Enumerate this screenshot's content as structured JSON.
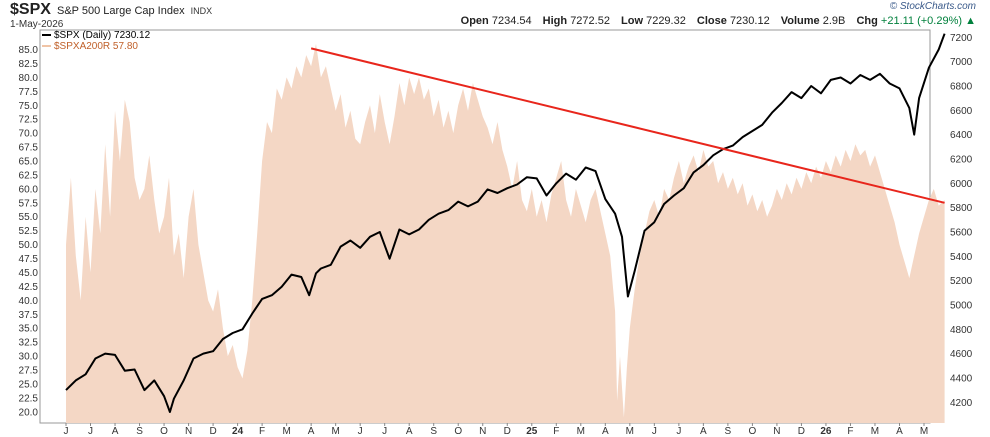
{
  "header": {
    "symbol": "$SPX",
    "name": "S&P 500 Large Cap Index",
    "exchange": "INDX",
    "date": "1-May-2026",
    "brand": "© StockCharts.com",
    "ohlc": {
      "open_label": "Open",
      "open": "7234.54",
      "high_label": "High",
      "high": "7272.52",
      "low_label": "Low",
      "low": "7229.32",
      "close_label": "Close",
      "close": "7230.12",
      "volume_label": "Volume",
      "volume": "2.9B",
      "chg_label": "Chg",
      "chg": "+21.11 (+0.29%)",
      "chg_arrow": "▲"
    }
  },
  "legend": {
    "spx": "$SPX (Daily) 7230.12",
    "breadth": "$SPXA200R 57.80"
  },
  "colors": {
    "price_line": "#000000",
    "breadth_area": "#f4d7c5",
    "trendline": "#e8261c",
    "up": "#00803c"
  },
  "chart_data": {
    "type": "line",
    "x_ticks": [
      "J",
      "J",
      "A",
      "S",
      "O",
      "N",
      "D",
      "24",
      "F",
      "M",
      "A",
      "M",
      "J",
      "J",
      "A",
      "S",
      "O",
      "N",
      "D",
      "25",
      "F",
      "M",
      "A",
      "M",
      "J",
      "J",
      "A",
      "S",
      "O",
      "N",
      "D",
      "26",
      "F",
      "M",
      "A",
      "M"
    ],
    "y_left_ticks": [
      "85.0",
      "82.5",
      "80.0",
      "77.5",
      "75.0",
      "72.5",
      "70.0",
      "67.5",
      "65.0",
      "62.5",
      "60.0",
      "57.5",
      "55.0",
      "52.5",
      "50.0",
      "47.5",
      "45.0",
      "42.5",
      "40.0",
      "37.5",
      "35.0",
      "32.5",
      "30.0",
      "27.5",
      "25.0",
      "22.5",
      "20.0"
    ],
    "y_right_ticks": [
      "7200",
      "7000",
      "6800",
      "6600",
      "6400",
      "6200",
      "6000",
      "5800",
      "5600",
      "5400",
      "5200",
      "5000",
      "4800",
      "4600",
      "4400",
      "4200"
    ],
    "y_left_range": [
      18,
      88.5
    ],
    "y_right_range": [
      4030,
      7260
    ],
    "grid": false,
    "series": [
      {
        "name": "$SPX (Daily)",
        "kind": "line",
        "axis": "right",
        "points": [
          [
            0,
            4300
          ],
          [
            1,
            4380
          ],
          [
            2,
            4430
          ],
          [
            3,
            4560
          ],
          [
            4,
            4600
          ],
          [
            5,
            4590
          ],
          [
            6,
            4460
          ],
          [
            7,
            4470
          ],
          [
            8,
            4300
          ],
          [
            9,
            4380
          ],
          [
            10,
            4250
          ],
          [
            10.6,
            4120
          ],
          [
            11,
            4230
          ],
          [
            12,
            4380
          ],
          [
            13,
            4560
          ],
          [
            14,
            4600
          ],
          [
            15,
            4620
          ],
          [
            16,
            4720
          ],
          [
            17,
            4770
          ],
          [
            18,
            4800
          ],
          [
            19,
            4930
          ],
          [
            20,
            5050
          ],
          [
            21,
            5080
          ],
          [
            22,
            5150
          ],
          [
            23,
            5250
          ],
          [
            24,
            5230
          ],
          [
            24.8,
            5080
          ],
          [
            25.5,
            5260
          ],
          [
            26,
            5300
          ],
          [
            27,
            5330
          ],
          [
            28,
            5480
          ],
          [
            29,
            5530
          ],
          [
            30,
            5470
          ],
          [
            31,
            5560
          ],
          [
            32,
            5600
          ],
          [
            33,
            5380
          ],
          [
            34,
            5620
          ],
          [
            35,
            5580
          ],
          [
            36,
            5620
          ],
          [
            37,
            5700
          ],
          [
            38,
            5750
          ],
          [
            39,
            5780
          ],
          [
            40,
            5850
          ],
          [
            41,
            5810
          ],
          [
            42,
            5850
          ],
          [
            43,
            5950
          ],
          [
            44,
            5920
          ],
          [
            45,
            5960
          ],
          [
            46,
            5990
          ],
          [
            47,
            6050
          ],
          [
            48,
            6040
          ],
          [
            49,
            5900
          ],
          [
            50,
            6000
          ],
          [
            51,
            6080
          ],
          [
            52,
            6030
          ],
          [
            53,
            6130
          ],
          [
            54,
            6100
          ],
          [
            55,
            5870
          ],
          [
            56,
            5750
          ],
          [
            56.7,
            5560
          ],
          [
            57.3,
            5070
          ],
          [
            58,
            5280
          ],
          [
            59,
            5610
          ],
          [
            60,
            5680
          ],
          [
            61,
            5830
          ],
          [
            62,
            5900
          ],
          [
            63,
            5960
          ],
          [
            64,
            6090
          ],
          [
            65,
            6150
          ],
          [
            66,
            6230
          ],
          [
            67,
            6280
          ],
          [
            68,
            6310
          ],
          [
            69,
            6380
          ],
          [
            70,
            6430
          ],
          [
            71,
            6480
          ],
          [
            72,
            6580
          ],
          [
            73,
            6660
          ],
          [
            74,
            6750
          ],
          [
            75,
            6700
          ],
          [
            76,
            6800
          ],
          [
            77,
            6740
          ],
          [
            78,
            6850
          ],
          [
            79,
            6870
          ],
          [
            80,
            6820
          ],
          [
            81,
            6890
          ],
          [
            82,
            6850
          ],
          [
            83,
            6900
          ],
          [
            84,
            6820
          ],
          [
            85,
            6780
          ],
          [
            86,
            6620
          ],
          [
            86.5,
            6400
          ],
          [
            87,
            6700
          ],
          [
            88,
            6950
          ],
          [
            89,
            7100
          ],
          [
            89.6,
            7230
          ]
        ]
      },
      {
        "name": "$SPXA200R",
        "kind": "area",
        "axis": "left",
        "points": [
          [
            0,
            50
          ],
          [
            0.5,
            62
          ],
          [
            1,
            48
          ],
          [
            1.5,
            40
          ],
          [
            2,
            55
          ],
          [
            2.5,
            45
          ],
          [
            3,
            60
          ],
          [
            3.5,
            52
          ],
          [
            4,
            68
          ],
          [
            4.5,
            55
          ],
          [
            5,
            74
          ],
          [
            5.5,
            65
          ],
          [
            6,
            76
          ],
          [
            6.5,
            72
          ],
          [
            7,
            62
          ],
          [
            7.5,
            58
          ],
          [
            8,
            60
          ],
          [
            8.5,
            66
          ],
          [
            9,
            58
          ],
          [
            9.5,
            52
          ],
          [
            10,
            55
          ],
          [
            10.5,
            62
          ],
          [
            11,
            48
          ],
          [
            11.5,
            52
          ],
          [
            12,
            44
          ],
          [
            12.5,
            55
          ],
          [
            13,
            60
          ],
          [
            13.5,
            50
          ],
          [
            14,
            45
          ],
          [
            14.5,
            40
          ],
          [
            15,
            38
          ],
          [
            15.5,
            42
          ],
          [
            16,
            35
          ],
          [
            16.5,
            30
          ],
          [
            17,
            32
          ],
          [
            17.5,
            28
          ],
          [
            18,
            26
          ],
          [
            18.5,
            31
          ],
          [
            19,
            40
          ],
          [
            19.5,
            52
          ],
          [
            20,
            65
          ],
          [
            20.5,
            72
          ],
          [
            21,
            70
          ],
          [
            21.5,
            78
          ],
          [
            22,
            76
          ],
          [
            22.5,
            80
          ],
          [
            23,
            78
          ],
          [
            23.5,
            82
          ],
          [
            24,
            80
          ],
          [
            24.5,
            84
          ],
          [
            25,
            82
          ],
          [
            25.5,
            86
          ],
          [
            26,
            80
          ],
          [
            26.5,
            82
          ],
          [
            27,
            78
          ],
          [
            27.5,
            74
          ],
          [
            28,
            77
          ],
          [
            28.5,
            71
          ],
          [
            29,
            74
          ],
          [
            29.5,
            69
          ],
          [
            30,
            68
          ],
          [
            30.5,
            72
          ],
          [
            31,
            75
          ],
          [
            31.5,
            70
          ],
          [
            32,
            77
          ],
          [
            32.5,
            72
          ],
          [
            33,
            68
          ],
          [
            33.5,
            73
          ],
          [
            34,
            79
          ],
          [
            34.5,
            75
          ],
          [
            35,
            80
          ],
          [
            35.5,
            77
          ],
          [
            36,
            80
          ],
          [
            36.5,
            76
          ],
          [
            37,
            78
          ],
          [
            37.5,
            73
          ],
          [
            38,
            76
          ],
          [
            38.5,
            71
          ],
          [
            39,
            74
          ],
          [
            39.5,
            70
          ],
          [
            40,
            75
          ],
          [
            40.5,
            78
          ],
          [
            41,
            74
          ],
          [
            41.5,
            79
          ],
          [
            42,
            76
          ],
          [
            42.5,
            73
          ],
          [
            43,
            71
          ],
          [
            43.5,
            68
          ],
          [
            44,
            72
          ],
          [
            44.5,
            67
          ],
          [
            45,
            64
          ],
          [
            45.5,
            60
          ],
          [
            46,
            65
          ],
          [
            46.5,
            58
          ],
          [
            47,
            56
          ],
          [
            47.5,
            60
          ],
          [
            48,
            55
          ],
          [
            48.5,
            58
          ],
          [
            49,
            54
          ],
          [
            49.5,
            59
          ],
          [
            50,
            62
          ],
          [
            50.5,
            65
          ],
          [
            51,
            58
          ],
          [
            51.5,
            55
          ],
          [
            52,
            60
          ],
          [
            52.5,
            57
          ],
          [
            53,
            54
          ],
          [
            53.5,
            58
          ],
          [
            54,
            60
          ],
          [
            54.5,
            56
          ],
          [
            55,
            52
          ],
          [
            55.5,
            48
          ],
          [
            56,
            38
          ],
          [
            56.2,
            22
          ],
          [
            56.5,
            30
          ],
          [
            56.9,
            19
          ],
          [
            57.2,
            28
          ],
          [
            57.5,
            35
          ],
          [
            58,
            42
          ],
          [
            58.5,
            48
          ],
          [
            59,
            52
          ],
          [
            59.5,
            56
          ],
          [
            60,
            58
          ],
          [
            60.5,
            55
          ],
          [
            61,
            60
          ],
          [
            61.5,
            58
          ],
          [
            62,
            62
          ],
          [
            62.5,
            65
          ],
          [
            63,
            61
          ],
          [
            63.5,
            64
          ],
          [
            64,
            66
          ],
          [
            64.5,
            63
          ],
          [
            65,
            67
          ],
          [
            65.5,
            64
          ],
          [
            66,
            65
          ],
          [
            66.5,
            61
          ],
          [
            67,
            63
          ],
          [
            67.5,
            60
          ],
          [
            68,
            62
          ],
          [
            68.5,
            59
          ],
          [
            69,
            61
          ],
          [
            69.5,
            57
          ],
          [
            70,
            59
          ],
          [
            70.5,
            56
          ],
          [
            71,
            58
          ],
          [
            71.5,
            55
          ],
          [
            72,
            57
          ],
          [
            72.5,
            60
          ],
          [
            73,
            58
          ],
          [
            73.5,
            61
          ],
          [
            74,
            59
          ],
          [
            74.5,
            62
          ],
          [
            75,
            60
          ],
          [
            75.5,
            63
          ],
          [
            76,
            61
          ],
          [
            76.5,
            64
          ],
          [
            77,
            62
          ],
          [
            77.5,
            65
          ],
          [
            78,
            63
          ],
          [
            78.5,
            66
          ],
          [
            79,
            64
          ],
          [
            79.5,
            67
          ],
          [
            80,
            65
          ],
          [
            80.5,
            68
          ],
          [
            81,
            66
          ],
          [
            81.5,
            67
          ],
          [
            82,
            64
          ],
          [
            82.5,
            66
          ],
          [
            83,
            63
          ],
          [
            83.5,
            60
          ],
          [
            84,
            57
          ],
          [
            84.5,
            54
          ],
          [
            85,
            50
          ],
          [
            85.5,
            47
          ],
          [
            86,
            44
          ],
          [
            86.5,
            48
          ],
          [
            87,
            52
          ],
          [
            87.5,
            55
          ],
          [
            88,
            58
          ],
          [
            88.5,
            60
          ],
          [
            89,
            57
          ],
          [
            89.6,
            58
          ]
        ]
      },
      {
        "name": "trendline",
        "kind": "line",
        "axis": "left",
        "points": [
          [
            25,
            85.2
          ],
          [
            89.6,
            57.5
          ]
        ]
      }
    ]
  }
}
